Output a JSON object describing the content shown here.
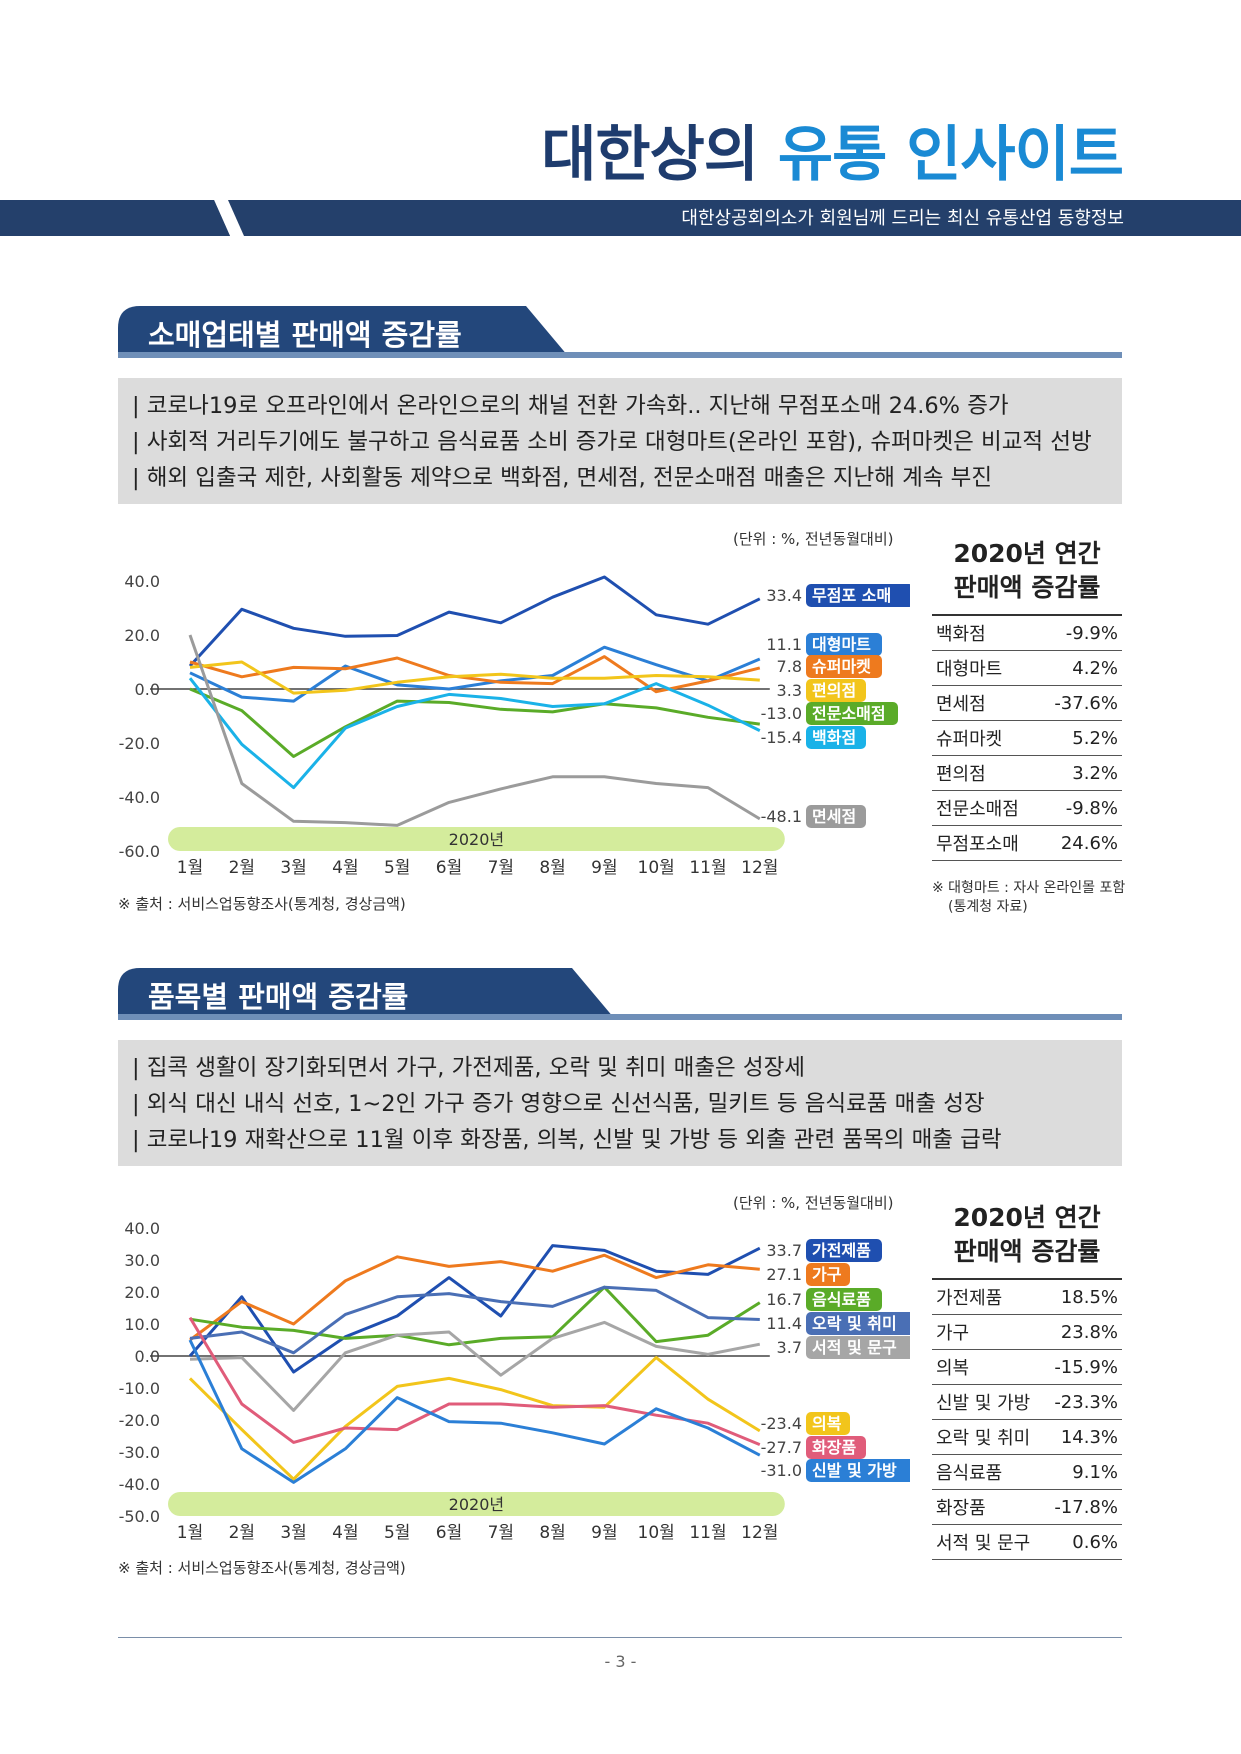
{
  "header": {
    "title_part1": "대한상의",
    "title_part2": "유통 인사이트",
    "subtitle": "대한상공회의소가 회원님께 드리는 최신 유통산업 동향정보",
    "title_color": "#1e3c6e",
    "accent_color": "#1a8ad4",
    "band_color": "#24406b"
  },
  "section1": {
    "heading": "소매업태별 판매액 증감률",
    "summary": [
      "| 코로나19로 오프라인에서 온라인으로의 채널 전환 가속화.. 지난해 무점포소매 24.6% 증가",
      "| 사회적 거리두기에도 불구하고 음식료품 소비 증가로 대형마트(온라인 포함), 슈퍼마켓은 비교적 선방",
      "| 해외 입출국 제한, 사회활동 제약으로 백화점, 면세점, 전문소매점 매출은 지난해 계속 부진"
    ],
    "unit": "(단위 : %, 전년동월대비)",
    "source": "※ 출처 : 서비스업동향조사(통계청, 경상금액)",
    "side_title_line1": "2020년 연간",
    "side_title_line2": "판매액 증감률",
    "side_table": [
      {
        "name": "백화점",
        "value": "-9.9%"
      },
      {
        "name": "대형마트",
        "value": "4.2%"
      },
      {
        "name": "면세점",
        "value": "-37.6%"
      },
      {
        "name": "슈퍼마켓",
        "value": "5.2%"
      },
      {
        "name": "편의점",
        "value": "3.2%"
      },
      {
        "name": "전문소매점",
        "value": "-9.8%"
      },
      {
        "name": "무점포소매",
        "value": "24.6%"
      }
    ],
    "side_note_line1": "※ 대형마트 : 자사 온라인몰 포함",
    "side_note_line2": "(통계청 자료)"
  },
  "section2": {
    "heading": "품목별 판매액 증감률",
    "summary": [
      "| 집콕 생활이 장기화되면서 가구, 가전제품, 오락 및 취미 매출은 성장세",
      "| 외식 대신 내식 선호, 1~2인 가구 증가 영향으로 신선식품, 밀키트 등 음식료품 매출 성장",
      "| 코로나19 재확산으로 11월 이후 화장품, 의복, 신발 및 가방 등 외출 관련 품목의 매출 급락"
    ],
    "unit": "(단위 : %, 전년동월대비)",
    "source": "※ 출처 : 서비스업동향조사(통계청, 경상금액)",
    "side_title_line1": "2020년 연간",
    "side_title_line2": "판매액 증감률",
    "side_table": [
      {
        "name": "가전제품",
        "value": "18.5%"
      },
      {
        "name": "가구",
        "value": "23.8%"
      },
      {
        "name": "의복",
        "value": "-15.9%"
      },
      {
        "name": "신발 및 가방",
        "value": "-23.3%"
      },
      {
        "name": "오락 및 취미",
        "value": "14.3%"
      },
      {
        "name": "음식료품",
        "value": "9.1%"
      },
      {
        "name": "화장품",
        "value": "-17.8%"
      },
      {
        "name": "서적 및 문구",
        "value": "0.6%"
      }
    ]
  },
  "chart_data": [
    {
      "type": "line",
      "year_label": "2020년",
      "categories": [
        "1월",
        "2월",
        "3월",
        "4월",
        "5월",
        "6월",
        "7월",
        "8월",
        "9월",
        "10월",
        "11월",
        "12월"
      ],
      "ylim": [
        -60,
        40
      ],
      "yticks": [
        "40.0",
        "20.0",
        "0.0",
        "-20.0",
        "-40.0",
        "-60.0"
      ],
      "ytick_values": [
        40,
        20,
        0,
        -20,
        -40,
        -60
      ],
      "series": [
        {
          "name": "무점포 소매",
          "end_label": "33.4",
          "color": "#1f4fb0",
          "values": [
            8.5,
            29.5,
            22.5,
            19.5,
            19.8,
            28.5,
            24.5,
            34,
            41.5,
            27.5,
            24,
            33.4
          ]
        },
        {
          "name": "대형마트",
          "end_label": "11.1",
          "color": "#2b7fd6",
          "values": [
            6,
            -3,
            -4.5,
            8.5,
            1.5,
            0,
            3,
            5,
            15.5,
            9,
            3,
            11.1
          ]
        },
        {
          "name": "슈퍼마켓",
          "end_label": "7.8",
          "color": "#ee7a1e",
          "values": [
            10,
            4.5,
            8,
            7.5,
            11.5,
            5,
            2.5,
            2,
            12,
            -1,
            3,
            7.8
          ]
        },
        {
          "name": "편의점",
          "end_label": "3.3",
          "color": "#f2c51b",
          "values": [
            8,
            10,
            -1.5,
            -0.5,
            2.5,
            4.5,
            5.5,
            4,
            4,
            5,
            4.5,
            3.3
          ]
        },
        {
          "name": "전문소매점",
          "end_label": "-13.0",
          "color": "#5aab28",
          "values": [
            0,
            -8,
            -25,
            -14,
            -4.5,
            -5,
            -7.5,
            -8.5,
            -5.5,
            -7,
            -10.5,
            -13.0
          ]
        },
        {
          "name": "백화점",
          "end_label": "-15.4",
          "color": "#1ab2e8",
          "values": [
            4,
            -20.5,
            -36.5,
            -14.5,
            -6.5,
            -2,
            -3.5,
            -6.5,
            -5.5,
            2,
            -6,
            -15.4
          ]
        },
        {
          "name": "면세점",
          "end_label": "-48.1",
          "color": "#9b9b9b",
          "values": [
            20,
            -35,
            -49,
            -49.5,
            -50.5,
            -42,
            -37,
            -32.5,
            -32.5,
            -35,
            -36.5,
            -48.1
          ]
        }
      ]
    },
    {
      "type": "line",
      "year_label": "2020년",
      "categories": [
        "1월",
        "2월",
        "3월",
        "4월",
        "5월",
        "6월",
        "7월",
        "8월",
        "9월",
        "10월",
        "11월",
        "12월"
      ],
      "ylim": [
        -50,
        40
      ],
      "yticks": [
        "40.0",
        "30.0",
        "20.0",
        "10.0",
        "0.0",
        "-10.0",
        "-20.0",
        "-30.0",
        "-40.0",
        "-50.0"
      ],
      "ytick_values": [
        40,
        30,
        20,
        10,
        0,
        -10,
        -20,
        -30,
        -40,
        -50
      ],
      "series": [
        {
          "name": "가전제품",
          "end_label": "33.7",
          "color": "#1f4fb0",
          "values": [
            0,
            18.5,
            -5,
            6,
            12.5,
            24.5,
            12.5,
            34.5,
            33,
            26.5,
            25.5,
            33.7
          ]
        },
        {
          "name": "가구",
          "end_label": "27.1",
          "color": "#ee7a1e",
          "values": [
            5,
            17,
            10,
            23.5,
            31,
            28,
            29.5,
            26.5,
            31.5,
            24.5,
            28.5,
            27.1
          ]
        },
        {
          "name": "음식료품",
          "end_label": "16.7",
          "color": "#5aab28",
          "values": [
            11.5,
            9,
            8,
            5.5,
            6.5,
            3.5,
            5.5,
            6,
            21.5,
            4.5,
            6.5,
            16.7
          ]
        },
        {
          "name": "오락 및 취미",
          "end_label": "11.4",
          "color": "#4a6fb5",
          "values": [
            5.5,
            7.5,
            1,
            13,
            18.5,
            19.5,
            17,
            15.5,
            21.5,
            20.5,
            12,
            11.4
          ]
        },
        {
          "name": "서적 및 문구",
          "end_label": "3.7",
          "color": "#a6a6a6",
          "values": [
            -1,
            -0.5,
            -17,
            1,
            6.5,
            7.5,
            -6,
            5.5,
            10.5,
            3,
            0.5,
            3.7
          ]
        },
        {
          "name": "의복",
          "end_label": "-23.4",
          "color": "#f2c51b",
          "values": [
            -7,
            -23,
            -38.5,
            -22,
            -9.5,
            -7,
            -10.5,
            -15.5,
            -16,
            -0.5,
            -13.5,
            -23.4
          ]
        },
        {
          "name": "화장품",
          "end_label": "-27.7",
          "color": "#e05c7a",
          "values": [
            12,
            -15,
            -27,
            -22.5,
            -23,
            -15,
            -15,
            -16,
            -15.5,
            -18.5,
            -21,
            -27.7
          ]
        },
        {
          "name": "신발 및 가방",
          "end_label": "-31.0",
          "color": "#2b7fd6",
          "values": [
            5,
            -29,
            -39.5,
            -29,
            -13,
            -20.5,
            -21,
            -24,
            -27.5,
            -16.5,
            -22.5,
            -31.0
          ]
        }
      ]
    }
  ],
  "page_number": "- 3 -"
}
